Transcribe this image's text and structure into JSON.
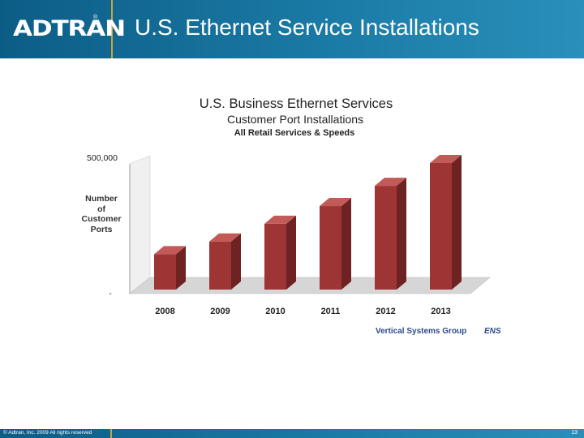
{
  "header": {
    "logo": "ADTRAN",
    "logo_mark": "®",
    "title": "U.S. Ethernet Service Installations"
  },
  "footer": {
    "copyright": "© Adtran, Inc. 2009 All rights reserved",
    "page_number": "13"
  },
  "colors": {
    "header_blue": "#1a7aa5",
    "bar_front": "#9e3535",
    "bar_side": "#6e2222",
    "bar_top": "#c25a58"
  },
  "chart_data": {
    "type": "bar",
    "title": "U.S. Business Ethernet Services",
    "subtitle": "Customer Port Installations",
    "subtitle2": "All Retail Services & Speeds",
    "ylabel": [
      "Number",
      "of",
      "Customer",
      "Ports"
    ],
    "y_top_tick": "500,000",
    "y_bottom_tick": "-",
    "categories": [
      "2008",
      "2009",
      "2010",
      "2011",
      "2012",
      "2013"
    ],
    "values": [
      140000,
      190000,
      260000,
      330000,
      410000,
      500000
    ],
    "ylim": [
      0,
      500000
    ],
    "source": "Vertical Systems Group",
    "source_mark": "ENS",
    "grid": false
  }
}
